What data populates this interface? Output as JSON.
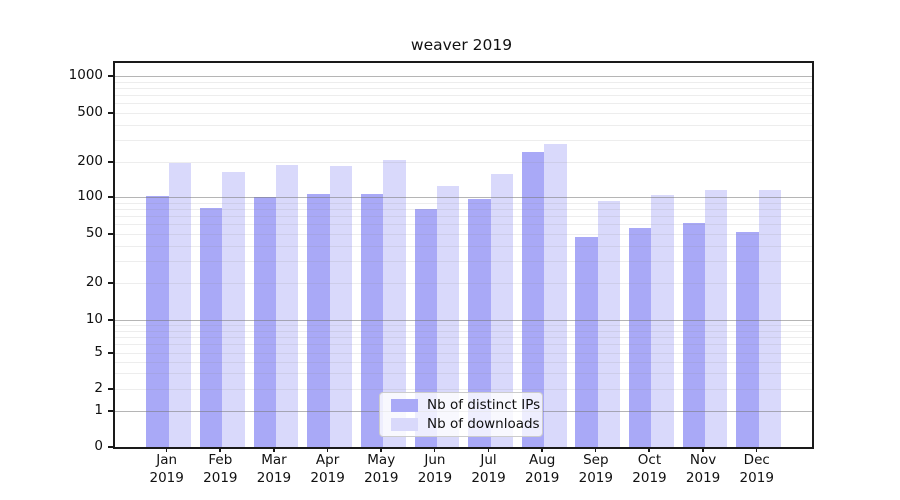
{
  "chart_data": {
    "type": "bar",
    "title": "weaver 2019",
    "categories": [
      "Jan",
      "Feb",
      "Mar",
      "Apr",
      "May",
      "Jun",
      "Jul",
      "Aug",
      "Sep",
      "Oct",
      "Nov",
      "Dec"
    ],
    "category_year": "2019",
    "series": [
      {
        "name": "Nb of distinct IPs",
        "color": "#a9a9f7",
        "values": [
          103,
          82,
          100,
          106,
          107,
          80,
          96,
          240,
          47,
          56,
          61,
          52
        ]
      },
      {
        "name": "Nb of downloads",
        "color": "#d9d9fb",
        "values": [
          196,
          165,
          188,
          185,
          206,
          125,
          159,
          280,
          92,
          104,
          116,
          116
        ]
      }
    ],
    "y_scale": "symlog",
    "y_tick_labels": [
      "1000",
      "500",
      "200",
      "100",
      "50",
      "20",
      "10",
      "5",
      "2",
      "1",
      "0"
    ],
    "ylim": [
      0,
      1000
    ],
    "grid": true,
    "legend_position": "lower center",
    "xlabel": "",
    "ylabel": ""
  }
}
